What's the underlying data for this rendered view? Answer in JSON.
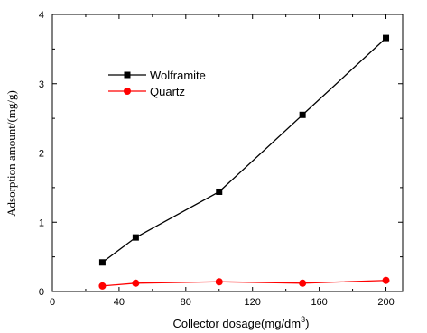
{
  "chart_data": {
    "type": "line",
    "xlabel_main": "Collector dosage(mg/dm",
    "xlabel_sup": "3",
    "xlabel_close": ")",
    "ylabel": "Adsorption amount/(mg/g)",
    "xlim": [
      0,
      210
    ],
    "ylim": [
      0,
      4
    ],
    "xticks": [
      0,
      40,
      80,
      120,
      160,
      200
    ],
    "yticks": [
      0,
      1,
      2,
      3,
      4
    ],
    "grid": false,
    "legend_position": "top-left",
    "series": [
      {
        "name": "Wolframite",
        "color": "#000000",
        "marker": "square",
        "x": [
          30,
          50,
          100,
          150,
          200
        ],
        "y": [
          0.42,
          0.78,
          1.44,
          2.55,
          3.66
        ]
      },
      {
        "name": "Quartz",
        "color": "#ff0000",
        "marker": "circle",
        "x": [
          30,
          50,
          100,
          150,
          200
        ],
        "y": [
          0.08,
          0.12,
          0.14,
          0.12,
          0.16
        ]
      }
    ]
  }
}
